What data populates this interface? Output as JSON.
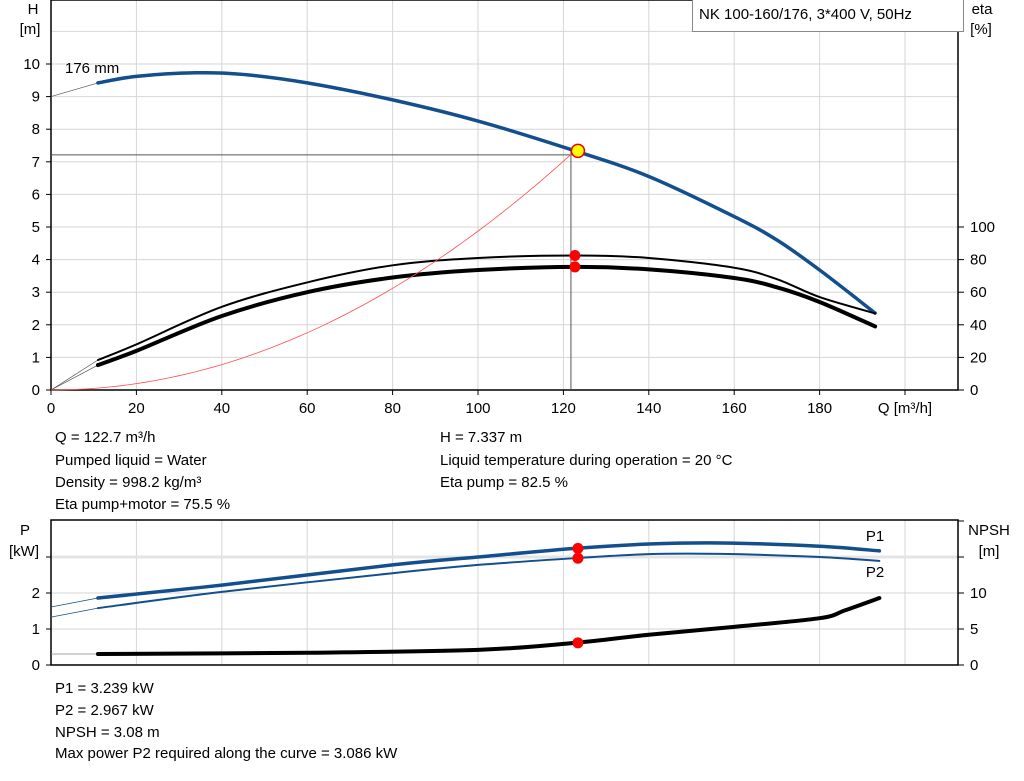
{
  "chart_data": [
    {
      "type": "line",
      "title": "NK 100-160/176, 3*400 V, 50Hz",
      "xlabel": "Q [m³/h]",
      "ylabel": "H",
      "ylabel_unit": "[m]",
      "y2label": "eta",
      "y2label_unit": "[%]",
      "xlim": [
        0,
        212
      ],
      "ylim": [
        0,
        12
      ],
      "y2lim": [
        0,
        240
      ],
      "x_ticks": [
        "0",
        "20",
        "40",
        "60",
        "80",
        "100",
        "120",
        "140",
        "160",
        "180"
      ],
      "y_ticks": [
        "0",
        "1",
        "2",
        "3",
        "4",
        "5",
        "6",
        "7",
        "8",
        "9",
        "10"
      ],
      "y2_ticks": [
        "0",
        "20",
        "40",
        "60",
        "80",
        "100"
      ],
      "grid": true,
      "impeller_label": "176 mm",
      "series": [
        {
          "key": "H",
          "axis": "left",
          "color": "#124f8c",
          "thin_start": [
            [
              0,
              9.0
            ],
            [
              11,
              9.42
            ]
          ],
          "points": [
            [
              11,
              9.42
            ],
            [
              20,
              9.62
            ],
            [
              34,
              9.73
            ],
            [
              45,
              9.68
            ],
            [
              60,
              9.42
            ],
            [
              80,
              8.9
            ],
            [
              100,
              8.25
            ],
            [
              122.7,
              7.337
            ],
            [
              140,
              6.55
            ],
            [
              160,
              5.32
            ],
            [
              170,
              4.6
            ],
            [
              180,
              3.68
            ],
            [
              193,
              2.36
            ]
          ]
        },
        {
          "key": "eta_pump",
          "axis": "right",
          "color": "#000000",
          "thin_start": [
            [
              0,
              0
            ],
            [
              11,
              18.4
            ]
          ],
          "points": [
            [
              11,
              18.4
            ],
            [
              20,
              28
            ],
            [
              40,
              51
            ],
            [
              60,
              66
            ],
            [
              80,
              76.5
            ],
            [
              100,
              81
            ],
            [
              122.7,
              82.5
            ],
            [
              140,
              81
            ],
            [
              160,
              75
            ],
            [
              170,
              68
            ],
            [
              180,
              57
            ],
            [
              193,
              47
            ]
          ]
        },
        {
          "key": "eta_pump_motor",
          "axis": "right",
          "color": "#000000",
          "thick": true,
          "thin_start": [
            [
              0,
              0
            ],
            [
              11,
              15.3
            ]
          ],
          "points": [
            [
              11,
              15.3
            ],
            [
              20,
              24
            ],
            [
              40,
              45.4
            ],
            [
              60,
              60
            ],
            [
              80,
              69
            ],
            [
              100,
              73.6
            ],
            [
              122.7,
              75.5
            ],
            [
              140,
              74
            ],
            [
              160,
              68.7
            ],
            [
              170,
              63
            ],
            [
              180,
              54
            ],
            [
              193,
              39
            ]
          ]
        },
        {
          "key": "system_curve",
          "axis": "left",
          "color": "#ff4d4d",
          "quadratic_through": [
            122.7,
            7.337
          ]
        }
      ],
      "operating_point": {
        "Q": 122.7,
        "H": 7.337,
        "eta_pump": 82.5,
        "eta_pump_motor": 75.5
      }
    },
    {
      "type": "line",
      "ylabel": "P",
      "ylabel_unit": "[kW]",
      "y2label": "NPSH",
      "y2label_unit": "[m]",
      "xlim": [
        0,
        212
      ],
      "ylim": [
        0,
        4
      ],
      "y2lim": [
        0,
        20
      ],
      "y_ticks": [
        "0",
        "1",
        "2"
      ],
      "y2_ticks": [
        "0",
        "5",
        "10"
      ],
      "grid": true,
      "series": [
        {
          "name": "P1",
          "axis": "left",
          "color": "#124f8c",
          "thin_start": [
            [
              0,
              1.61
            ],
            [
              11,
              1.86
            ]
          ],
          "points": [
            [
              11,
              1.86
            ],
            [
              40,
              2.22
            ],
            [
              80,
              2.78
            ],
            [
              100,
              3.0
            ],
            [
              122.7,
              3.239
            ],
            [
              140,
              3.36
            ],
            [
              157,
              3.39
            ],
            [
              180,
              3.3
            ],
            [
              194,
              3.17
            ]
          ]
        },
        {
          "name": "P2",
          "axis": "left",
          "color": "#124f8c",
          "thin_start": [
            [
              0,
              1.33
            ],
            [
              11,
              1.58
            ]
          ],
          "points": [
            [
              11,
              1.58
            ],
            [
              40,
              2.03
            ],
            [
              80,
              2.55
            ],
            [
              100,
              2.78
            ],
            [
              122.7,
              2.967
            ],
            [
              140,
              3.08
            ],
            [
              157,
              3.086
            ],
            [
              180,
              3.0
            ],
            [
              194,
              2.89
            ]
          ]
        },
        {
          "key": "NPSH",
          "axis": "right",
          "color": "#000000",
          "thin_start": [
            [
              0,
              1.53
            ],
            [
              11,
              1.53
            ]
          ],
          "points": [
            [
              11,
              1.53
            ],
            [
              60,
              1.7
            ],
            [
              100,
              2.1
            ],
            [
              122.7,
              3.08
            ],
            [
              140,
              4.2
            ],
            [
              160,
              5.3
            ],
            [
              180,
              6.5
            ],
            [
              186,
              7.6
            ],
            [
              194,
              9.3
            ]
          ]
        }
      ],
      "operating_point": {
        "Q": 122.7,
        "P1": 3.239,
        "P2": 2.967,
        "NPSH": 3.08
      }
    }
  ],
  "results_top": {
    "q": "Q = 122.7 m³/h",
    "liquid": "Pumped liquid = Water",
    "density": "Density = 998.2 kg/m³",
    "eta_pm": "Eta pump+motor = 75.5 %",
    "h": "H = 7.337 m",
    "temp": "Liquid temperature during operation = 20 °C",
    "eta_p": "Eta pump = 82.5 %"
  },
  "results_bottom": {
    "p1": "P1 = 3.239 kW",
    "p2": "P2 = 2.967 kW",
    "npsh": "NPSH = 3.08 m",
    "max_p2": "Max power P2 required along the curve = 3.086 kW"
  }
}
